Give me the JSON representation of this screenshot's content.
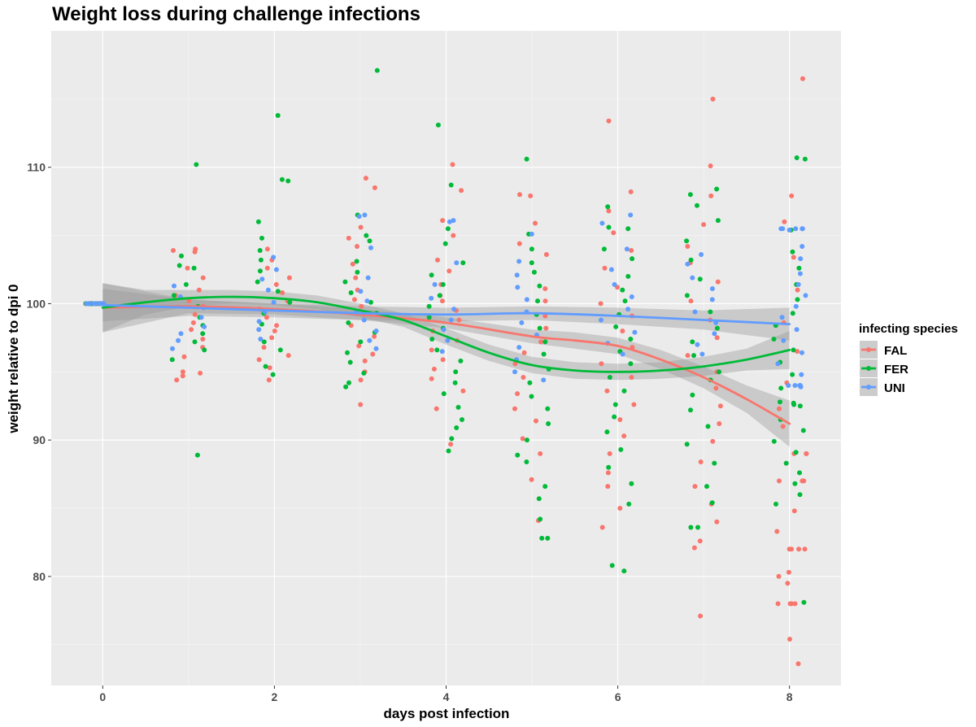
{
  "chart_data": {
    "type": "scatter",
    "title": "Weight loss during challenge infections",
    "xlabel": "days post infection",
    "ylabel": "weight relative to dpi 0",
    "xlim": [
      -0.6,
      8.6
    ],
    "ylim": [
      72,
      120
    ],
    "x_ticks": [
      0,
      2,
      4,
      6,
      8
    ],
    "x_tick_labels": [
      "0",
      "2",
      "4",
      "6",
      "8"
    ],
    "y_ticks": [
      80,
      90,
      100,
      110
    ],
    "y_tick_labels": [
      "80",
      "90",
      "100",
      "110"
    ],
    "grid": true,
    "background": "#ebebeb",
    "point_jitter": 0.2,
    "legend": {
      "title": "infecting species",
      "position": "right",
      "entries": [
        "FAL",
        "FER",
        "UNI"
      ]
    },
    "series": [
      {
        "name": "FAL",
        "color": "#f8766d",
        "points": {
          "0": [
            100,
            100,
            100,
            100,
            100,
            100,
            100,
            100,
            100,
            100,
            100,
            100,
            100,
            100,
            100,
            100
          ],
          "1": [
            104.0,
            103.9,
            103.8,
            102.6,
            101.9,
            101.0,
            100.6,
            100.2,
            99.8,
            99.2,
            98.6,
            98.1,
            97.4,
            96.8,
            96.1,
            95.0,
            94.9,
            94.7,
            94.4
          ],
          "2": [
            104.0,
            103.2,
            102.6,
            101.9,
            101.4,
            100.8,
            100.2,
            99.6,
            99.0,
            98.4,
            98.0,
            97.5,
            96.8,
            96.2,
            95.9,
            95.3,
            94.4
          ],
          "3": [
            109.2,
            108.5,
            105.6,
            104.8,
            104.2,
            102.9,
            101.9,
            101.0,
            100.3,
            99.8,
            99.2,
            98.4,
            97.6,
            96.9,
            96.3,
            95.8,
            95.0,
            94.4,
            92.6
          ],
          "4": [
            110.2,
            108.3,
            106.1,
            105.0,
            103.2,
            102.4,
            101.4,
            100.6,
            100.2,
            99.5,
            98.8,
            98.0,
            97.3,
            96.6,
            95.9,
            95.2,
            94.5,
            93.6,
            92.3,
            89.7
          ],
          "5": [
            108.0,
            107.9,
            105.9,
            104.4,
            103.6,
            101.1,
            100.2,
            99.1,
            98.2,
            97.2,
            96.4,
            95.6,
            94.6,
            93.4,
            92.3,
            91.4,
            90.1,
            89.0,
            87.1,
            84.1
          ],
          "6": [
            113.4,
            108.2,
            106.8,
            105.2,
            103.9,
            102.6,
            101.2,
            100.0,
            99.1,
            98.0,
            96.8,
            95.6,
            94.6,
            93.6,
            92.6,
            91.5,
            90.3,
            89.0,
            87.6,
            86.6,
            85.0,
            83.6
          ],
          "7": [
            115.0,
            110.1,
            107.9,
            105.8,
            104.2,
            103.0,
            101.6,
            100.2,
            98.8,
            97.5,
            96.2,
            95.0,
            93.8,
            92.5,
            91.2,
            89.9,
            88.4,
            86.6,
            85.3,
            84.0,
            82.6,
            82.1,
            77.1
          ],
          "8": [
            116.5,
            107.9,
            106.0,
            103.4,
            101.0,
            98.6,
            96.5,
            94.2,
            92.3,
            91.0,
            89.0,
            89.0,
            89.0,
            87.0,
            87.0,
            87.0,
            84.8,
            83.3,
            82.0,
            82.0,
            82.0,
            82.0,
            80.3,
            80.0,
            79.5,
            78.0,
            78.0,
            78.0,
            78.0,
            75.4,
            73.6
          ]
        }
      },
      {
        "name": "FER",
        "color": "#00ba38",
        "points": {
          "0": [
            100,
            100,
            100,
            100,
            100,
            100
          ],
          "1": [
            110.2,
            103.5,
            102.8,
            102.6,
            101.4,
            100.6,
            99.8,
            99.0,
            98.4,
            97.8,
            97.2,
            96.6,
            95.9,
            88.9
          ],
          "2": [
            113.8,
            109.1,
            109.0,
            106.0,
            104.8,
            103.9,
            103.2,
            102.4,
            101.6,
            100.9,
            100.1,
            99.3,
            98.5,
            97.2,
            96.6,
            95.4,
            94.8
          ],
          "3": [
            117.1,
            106.5,
            105.0,
            104.6,
            103.1,
            102.3,
            101.6,
            100.8,
            100.1,
            99.3,
            98.6,
            97.9,
            97.2,
            96.4,
            95.7,
            94.9,
            94.2,
            93.9
          ],
          "4": [
            113.1,
            108.7,
            105.5,
            104.4,
            103.0,
            102.1,
            101.4,
            100.6,
            99.8,
            99.0,
            98.2,
            97.4,
            96.6,
            95.8,
            95.0,
            94.2,
            93.4,
            92.4,
            91.5,
            90.9,
            90.1,
            89.2
          ],
          "5": [
            110.6,
            105.1,
            104.0,
            103.0,
            102.3,
            101.3,
            100.2,
            99.2,
            98.2,
            97.2,
            96.3,
            95.2,
            94.2,
            93.2,
            92.3,
            91.2,
            90.0,
            88.9,
            88.4,
            86.6,
            85.7,
            84.2,
            82.8,
            82.8
          ],
          "6": [
            107.1,
            105.6,
            105.5,
            104.0,
            103.3,
            102.0,
            101.0,
            100.2,
            99.2,
            98.3,
            97.4,
            96.5,
            95.6,
            94.6,
            93.6,
            92.6,
            91.7,
            90.6,
            89.3,
            88.0,
            86.8,
            85.3,
            80.8,
            80.4
          ],
          "7": [
            108.4,
            108.0,
            107.2,
            106.1,
            104.6,
            103.2,
            101.8,
            100.6,
            99.4,
            98.2,
            97.2,
            96.2,
            95.0,
            94.4,
            93.3,
            92.2,
            91.0,
            89.7,
            88.3,
            86.6,
            85.4,
            83.6,
            83.6
          ],
          "8": [
            110.7,
            110.6,
            105.4,
            103.8,
            102.6,
            101.4,
            100.3,
            99.3,
            98.4,
            97.4,
            96.6,
            95.7,
            94.8,
            93.8,
            92.8,
            92.7,
            92.6,
            92.5,
            91.5,
            90.7,
            89.9,
            89.1,
            88.3,
            87.6,
            86.8,
            86.0,
            85.3,
            78.1
          ]
        }
      },
      {
        "name": "UNI",
        "color": "#619cff",
        "points": {
          "0": [
            100,
            100,
            100,
            100,
            100,
            100,
            100,
            100,
            100,
            100,
            100,
            100,
            100,
            100,
            100
          ],
          "1": [
            101.3,
            100.5,
            99.7,
            99.0,
            98.3,
            97.8,
            97.3,
            96.7
          ],
          "2": [
            103.4,
            102.5,
            101.8,
            101.0,
            100.1,
            99.4,
            98.7,
            98.1,
            97.4
          ],
          "3": [
            106.5,
            106.4,
            104.1,
            101.9,
            100.9,
            100.2,
            99.4,
            98.8,
            98.0,
            97.3,
            96.7
          ],
          "4": [
            106.1,
            106.0,
            103.0,
            101.4,
            100.4,
            99.6,
            98.8,
            98.1,
            97.3,
            96.5
          ],
          "5": [
            105.1,
            103.1,
            102.1,
            101.2,
            100.3,
            99.4,
            98.6,
            97.7,
            96.8,
            95.9,
            95.0,
            94.4
          ],
          "6": [
            106.5,
            105.9,
            104.0,
            102.5,
            101.4,
            100.5,
            99.6,
            98.8,
            97.9,
            97.1,
            96.3
          ],
          "7": [
            103.6,
            102.9,
            101.9,
            101.1,
            100.3,
            99.4,
            98.6,
            97.8,
            97.0,
            96.3
          ],
          "8": [
            105.5,
            105.5,
            105.5,
            105.5,
            105.5,
            105.4,
            104.2,
            103.3,
            102.2,
            101.4,
            100.6,
            99.8,
            99.0,
            98.1,
            97.3,
            96.4,
            95.6,
            94.8,
            94.0,
            94.0,
            94.0,
            94.0,
            93.9
          ]
        }
      }
    ],
    "smooth_lines": [
      {
        "name": "FAL",
        "color": "#f8766d",
        "x": [
          0,
          1,
          2,
          3,
          4,
          5,
          5.5,
          6,
          6.5,
          7,
          7.5,
          8
        ],
        "y": [
          99.7,
          99.8,
          99.6,
          99.2,
          98.6,
          97.6,
          97.3,
          96.9,
          95.9,
          94.6,
          93.0,
          91.2
        ],
        "ci_halfwidth": [
          1.8,
          0.5,
          0.4,
          0.4,
          0.4,
          0.5,
          0.6,
          0.6,
          0.7,
          0.8,
          1.0,
          1.7
        ]
      },
      {
        "name": "FER",
        "color": "#00ba38",
        "x": [
          0,
          0.5,
          1,
          1.5,
          2,
          2.5,
          3,
          3.5,
          4,
          4.5,
          5,
          5.5,
          6,
          6.5,
          7,
          7.5,
          8
        ],
        "y": [
          99.7,
          100.1,
          100.4,
          100.5,
          100.4,
          100.1,
          99.5,
          98.8,
          97.6,
          96.4,
          95.5,
          95.1,
          95.0,
          95.1,
          95.4,
          95.9,
          96.6
        ],
        "ci_halfwidth": [
          1.8,
          0.9,
          0.6,
          0.5,
          0.5,
          0.5,
          0.5,
          0.5,
          0.6,
          0.6,
          0.6,
          0.6,
          0.6,
          0.6,
          0.7,
          0.8,
          1.4
        ]
      },
      {
        "name": "UNI",
        "color": "#619cff",
        "x": [
          0,
          1,
          2,
          3,
          4,
          5,
          6,
          7,
          8
        ],
        "y": [
          99.9,
          99.7,
          99.5,
          99.3,
          99.2,
          99.3,
          99.1,
          98.8,
          98.5
        ],
        "ci_halfwidth": [
          1.2,
          0.6,
          0.5,
          0.5,
          0.5,
          0.5,
          0.6,
          0.7,
          1.2
        ]
      }
    ]
  }
}
